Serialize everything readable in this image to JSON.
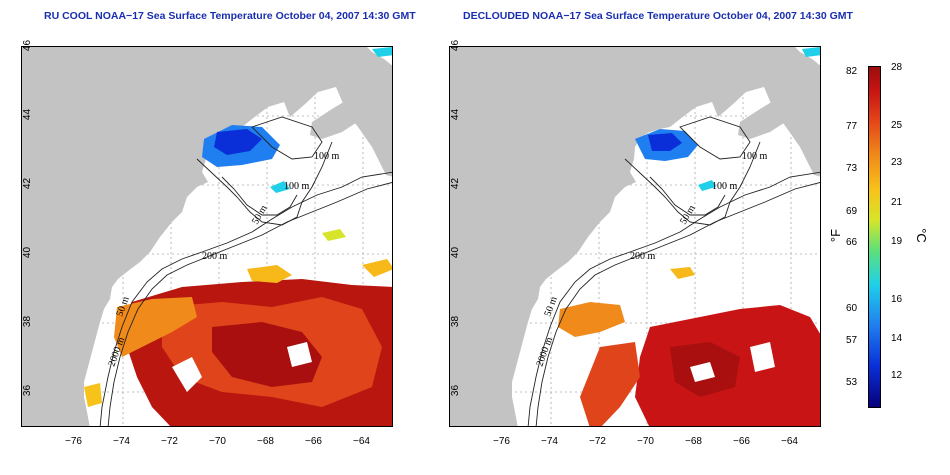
{
  "maps": [
    {
      "id": "left",
      "title": "RU COOL NOAA−17 Sea Surface Temperature October 04, 2007 14:30 GMT",
      "contour_labels": [
        "100 m",
        "100 m",
        "50 m",
        "200 m",
        "50 m",
        "2000 m"
      ]
    },
    {
      "id": "right",
      "title": "DECLOUDED NOAA−17 Sea Surface Temperature October 04, 2007 14:30 GMT",
      "contour_labels": [
        "100 m",
        "100 m",
        "50 m",
        "200 m",
        "50 m",
        "2000 m"
      ]
    }
  ],
  "axes": {
    "x_ticks": [
      "−76",
      "−74",
      "−72",
      "−70",
      "−68",
      "−66",
      "−64"
    ],
    "y_ticks": [
      "46",
      "44",
      "42",
      "40",
      "38",
      "36"
    ]
  },
  "colorbar": {
    "unit_f": "°F",
    "unit_c": "°C",
    "f_ticks": [
      "82",
      "77",
      "73",
      "69",
      "66",
      "60",
      "57",
      "53"
    ],
    "c_ticks": [
      "28",
      "25",
      "23",
      "21",
      "19",
      "16",
      "14",
      "12"
    ],
    "colors": [
      "#08007a",
      "#0a2fd8",
      "#1f7ef0",
      "#1fd0e8",
      "#5de07a",
      "#d6e52a",
      "#f7c21a",
      "#f08a1a",
      "#e4461a",
      "#c81414",
      "#9c0d0d"
    ]
  },
  "map_colors": {
    "land": "#c3c3c3",
    "ocean": "#ffffff",
    "contour": "#222222",
    "grid": "#aaaaaa"
  }
}
